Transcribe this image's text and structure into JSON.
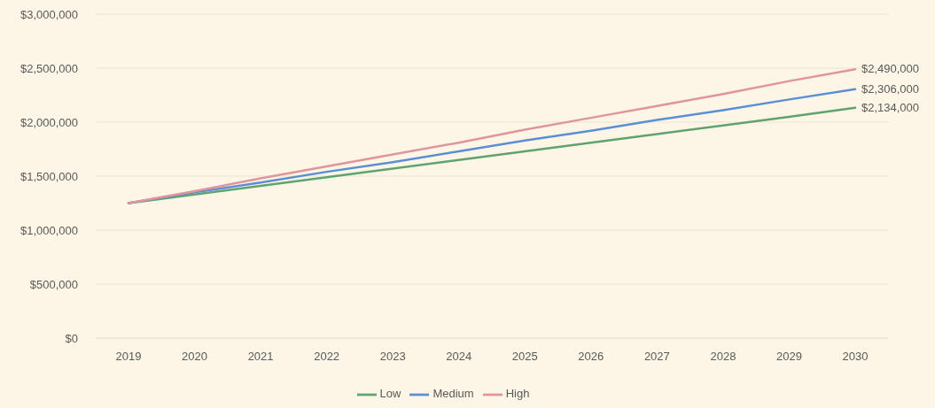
{
  "chart_data": {
    "type": "line",
    "categories": [
      "2019",
      "2020",
      "2021",
      "2022",
      "2023",
      "2024",
      "2025",
      "2026",
      "2027",
      "2028",
      "2029",
      "2030"
    ],
    "series": [
      {
        "name": "Low",
        "color": "#5fa36e",
        "values": [
          1250000,
          1330000,
          1410000,
          1490000,
          1570000,
          1650000,
          1730000,
          1810000,
          1890000,
          1970000,
          2050000,
          2134000
        ],
        "value_labels": [
          null,
          null,
          null,
          null,
          null,
          null,
          null,
          null,
          null,
          null,
          null,
          "$2,134,000"
        ]
      },
      {
        "name": "Medium",
        "color": "#5a8fd4",
        "values": [
          1250000,
          1350000,
          1440000,
          1540000,
          1630000,
          1730000,
          1830000,
          1920000,
          2020000,
          2110000,
          2210000,
          2306000
        ],
        "value_labels": [
          null,
          null,
          null,
          null,
          null,
          null,
          null,
          null,
          null,
          null,
          null,
          "$2,306,000"
        ]
      },
      {
        "name": "High",
        "color": "#e0959b",
        "values": [
          1250000,
          1360000,
          1480000,
          1590000,
          1700000,
          1810000,
          1930000,
          2040000,
          2150000,
          2260000,
          2380000,
          2490000
        ],
        "value_labels": [
          null,
          null,
          null,
          null,
          null,
          null,
          null,
          null,
          null,
          null,
          null,
          "$2,490,000"
        ]
      }
    ],
    "ylim": [
      0,
      3000000
    ],
    "yticks": [
      {
        "value": 0,
        "label": "$0"
      },
      {
        "value": 500000,
        "label": "$500,000"
      },
      {
        "value": 1000000,
        "label": "$1,000,000"
      },
      {
        "value": 1500000,
        "label": "$1,500,000"
      },
      {
        "value": 2000000,
        "label": "$2,000,000"
      },
      {
        "value": 2500000,
        "label": "$2,500,000"
      },
      {
        "value": 3000000,
        "label": "$3,000,000"
      }
    ],
    "grid": "y",
    "legend": "bottom",
    "marker": "none",
    "line_style": "solid"
  }
}
